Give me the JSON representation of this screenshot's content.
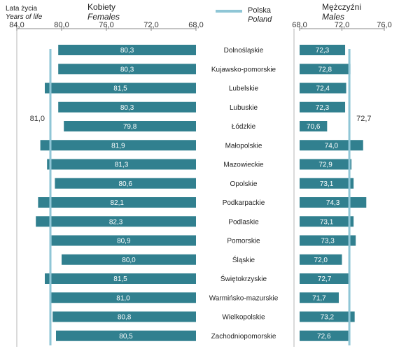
{
  "chart_data": {
    "type": "bar",
    "orientation": "horizontal",
    "y_unit_label": "Lata życia",
    "y_unit_label_en": "Years of life",
    "categories": [
      "Dolnośląskie",
      "Kujawsko-pomorskie",
      "Lubelskie",
      "Lubuskie",
      "Łódzkie",
      "Małopolskie",
      "Mazowieckie",
      "Opolskie",
      "Podkarpackie",
      "Podlaskie",
      "Pomorskie",
      "Śląskie",
      "Świętokrzyskie",
      "Warmińsko-mazurskie",
      "Wielkopolskie",
      "Zachodniopomorskie"
    ],
    "panels": [
      {
        "name": "Kobiety",
        "name_en": "Females",
        "values": [
          80.3,
          80.3,
          81.5,
          80.3,
          79.8,
          81.9,
          81.3,
          80.6,
          82.1,
          82.3,
          80.9,
          80.0,
          81.5,
          81.0,
          80.8,
          80.5
        ],
        "value_labels": [
          "80,3",
          "80,3",
          "81,5",
          "80,3",
          "79,8",
          "81,9",
          "81,3",
          "80,6",
          "82,1",
          "82,3",
          "80,9",
          "80,0",
          "81,5",
          "81,0",
          "80,8",
          "80,5"
        ],
        "xlim": [
          84.0,
          68.0
        ],
        "ticks": [
          84.0,
          80.0,
          76.0,
          72.0,
          68.0
        ],
        "tick_labels": [
          "84,0",
          "80,0",
          "76,0",
          "72,0",
          "68,0"
        ],
        "reference_value": 81.0,
        "reference_label": "81,0"
      },
      {
        "name": "Mężczyźni",
        "name_en": "Males",
        "values": [
          72.3,
          72.8,
          72.4,
          72.3,
          70.6,
          74.0,
          72.9,
          73.1,
          74.3,
          73.1,
          73.3,
          72.0,
          72.7,
          71.7,
          73.2,
          72.6
        ],
        "value_labels": [
          "72,3",
          "72,8",
          "72,4",
          "72,3",
          "70,6",
          "74,0",
          "72,9",
          "73,1",
          "74,3",
          "73,1",
          "73,3",
          "72,0",
          "72,7",
          "71,7",
          "73,2",
          "72,6"
        ],
        "xlim": [
          68.0,
          76.0
        ],
        "ticks": [
          68.0,
          72.0,
          76.0
        ],
        "tick_labels": [
          "68,0",
          "72,0",
          "76,0"
        ],
        "reference_value": 72.7,
        "reference_label": "72,7"
      }
    ],
    "legend": {
      "label": "Polska",
      "label_en": "Poland",
      "placement": "top-center"
    },
    "colors": {
      "bar": "#31808f",
      "reference": "#8fc6d6",
      "bar_text": "#ffffff",
      "axis": "#888888"
    }
  }
}
